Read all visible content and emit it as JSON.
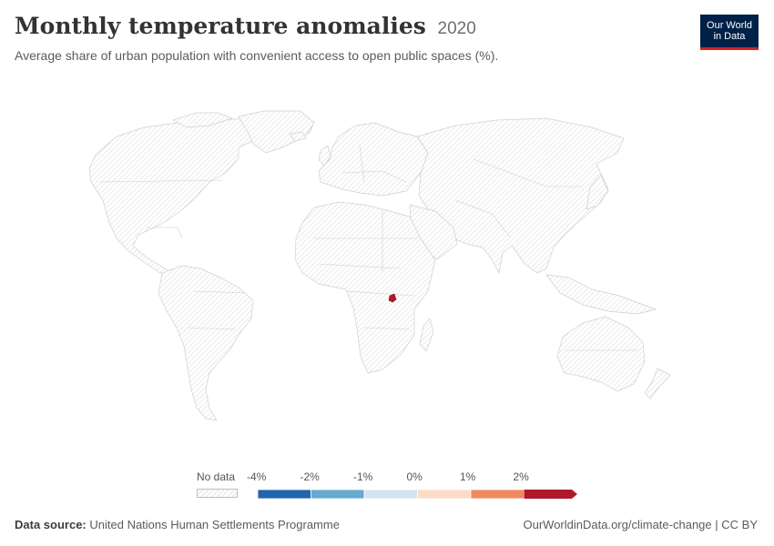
{
  "title": "Monthly temperature anomalies",
  "year": "2020",
  "subtitle": "Average share of urban population with convenient access to open public spaces (%).",
  "logo": {
    "line1": "Our World",
    "line2": "in Data"
  },
  "legend": {
    "no_data_label": "No data",
    "bins": [
      {
        "label": "-4%",
        "color": "#2166ac"
      },
      {
        "label": "-2%",
        "color": "#67a9cf"
      },
      {
        "label": "-1%",
        "color": "#d1e5f0"
      },
      {
        "label": "0%",
        "color": "#fddbc7"
      },
      {
        "label": "1%",
        "color": "#ef8a62"
      },
      {
        "label": "2%",
        "color": "#b2182b"
      }
    ]
  },
  "highlight_color": "#b2182b",
  "footer": {
    "source_label": "Data source:",
    "source_value": "United Nations Human Settlements Programme",
    "link": "OurWorldinData.org/climate-change",
    "license": "CC BY"
  }
}
